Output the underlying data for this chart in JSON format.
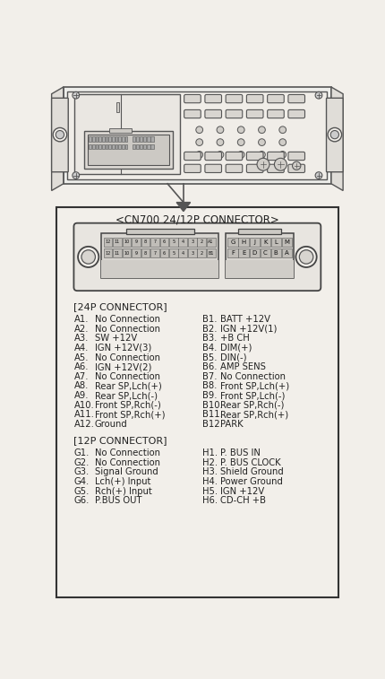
{
  "bg_color": "#f2efea",
  "border_color": "#555555",
  "line_color": "#555555",
  "text_color": "#222222",
  "connector_title": "<CN700 24/12P CONNECTOR>",
  "24p_header": "[24P CONNECTOR]",
  "12p_header": "[12P CONNECTOR]",
  "col_A": [
    [
      "A1.",
      "No Connection"
    ],
    [
      "A2.",
      "No Connection"
    ],
    [
      "A3.",
      "SW +12V"
    ],
    [
      "A4.",
      "IGN +12V(3)"
    ],
    [
      "A5.",
      "No Connection"
    ],
    [
      "A6.",
      "IGN +12V(2)"
    ],
    [
      "A7.",
      "No Connection"
    ],
    [
      "A8.",
      "Rear SP,Lch(+)"
    ],
    [
      "A9.",
      "Rear SP,Lch(-)"
    ],
    [
      "A10.",
      "Front SP,Rch(-)"
    ],
    [
      "A11.",
      "Front SP,Rch(+)"
    ],
    [
      "A12.",
      "Ground"
    ]
  ],
  "col_B": [
    [
      "B1.",
      "BATT +12V"
    ],
    [
      "B2.",
      "IGN +12V(1)"
    ],
    [
      "B3.",
      "+B CH"
    ],
    [
      "B4.",
      "DIM(+)"
    ],
    [
      "B5.",
      "DIN(-)"
    ],
    [
      "B6.",
      "AMP SENS"
    ],
    [
      "B7.",
      "No Connection"
    ],
    [
      "B8.",
      "Front SP,Lch(+)"
    ],
    [
      "B9.",
      "Front SP,Lch(-)"
    ],
    [
      "B10.",
      "Rear SP,Rch(-)"
    ],
    [
      "B11.",
      "Rear SP,Rch(+)"
    ],
    [
      "B12.",
      "PARK"
    ]
  ],
  "col_G": [
    [
      "G1.",
      "No Connection"
    ],
    [
      "G2.",
      "No Connection"
    ],
    [
      "G3.",
      "Signal Ground"
    ],
    [
      "G4.",
      "Lch(+) Input"
    ],
    [
      "G5.",
      "Rch(+) Input"
    ],
    [
      "G6.",
      "P.BUS OUT"
    ]
  ],
  "col_H": [
    [
      "H1.",
      "P. BUS IN"
    ],
    [
      "H2.",
      "P. BUS CLOCK"
    ],
    [
      "H3.",
      "Shield Ground"
    ],
    [
      "H4.",
      "Power Ground"
    ],
    [
      "H5.",
      "IGN +12V"
    ],
    [
      "H6.",
      "CD-CH +B"
    ]
  ],
  "radio_pins_24p_top": [
    "12",
    "11",
    "10",
    "9",
    "8",
    "7",
    "6",
    "5",
    "4",
    "3",
    "2",
    "A1"
  ],
  "radio_pins_24p_bot": [
    "12",
    "11",
    "10",
    "9",
    "8",
    "7",
    "6",
    "5",
    "4",
    "3",
    "2",
    "B1"
  ],
  "radio_pins_12p_top": [
    "G",
    "H",
    "J",
    "K",
    "L",
    "M"
  ],
  "radio_pins_12p_bot": [
    "F",
    "E",
    "D",
    "C",
    "B",
    "A"
  ]
}
